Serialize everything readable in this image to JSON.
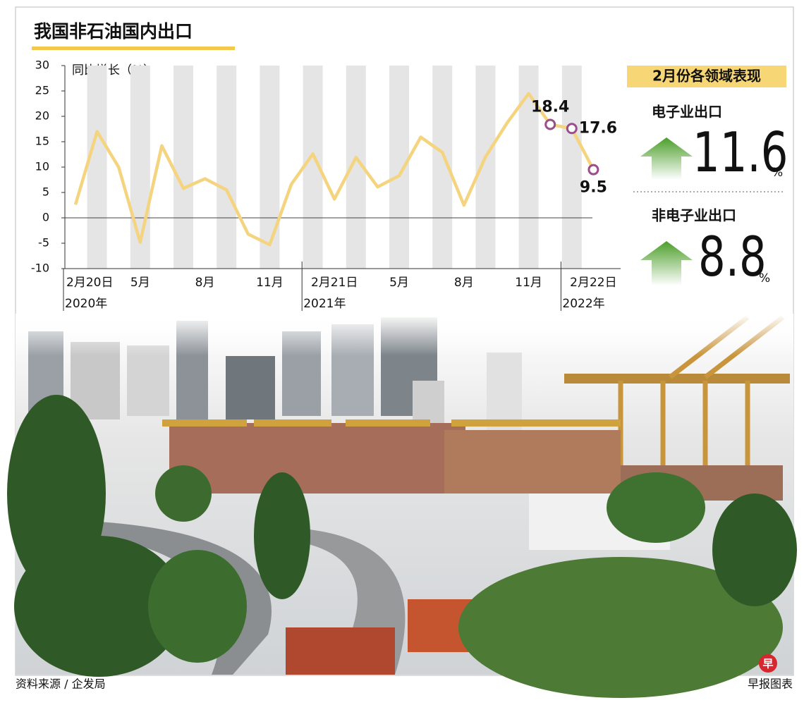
{
  "chart_data": {
    "type": "line",
    "title": "我国非石油国内出口",
    "y_label": "同比增长（%）",
    "categories": [
      "2月20日",
      null,
      null,
      "5月",
      null,
      null,
      "8月",
      null,
      null,
      "11月",
      null,
      null,
      "2月21日",
      null,
      null,
      "5月",
      null,
      null,
      "8月",
      null,
      null,
      "11月",
      null,
      null,
      "2月22日"
    ],
    "x_sublabels": [
      "2020年",
      null,
      null,
      null,
      null,
      null,
      null,
      null,
      null,
      null,
      null,
      null,
      "2021年",
      null,
      null,
      null,
      null,
      null,
      null,
      null,
      null,
      null,
      null,
      null,
      "2022年"
    ],
    "values": [
      2.6,
      17,
      10,
      -4.8,
      14.2,
      5.8,
      7.7,
      5.5,
      -3.2,
      -5.3,
      6.6,
      12.6,
      3.7,
      11.9,
      6.1,
      8.3,
      15.9,
      12.9,
      2.5,
      12,
      18.7,
      24.5,
      18.4,
      17.6,
      9.5
    ],
    "value_labels": [
      null,
      null,
      null,
      null,
      null,
      null,
      null,
      null,
      null,
      null,
      null,
      null,
      null,
      null,
      null,
      null,
      null,
      null,
      null,
      null,
      null,
      null,
      "18.4",
      "17.6",
      "9.5"
    ],
    "color": "#f4d47e",
    "marker_color": "#9c4d8e",
    "ylim": [
      -10,
      30
    ],
    "yticks": [
      -10,
      -5,
      0,
      5,
      10,
      15,
      20,
      25,
      30
    ]
  },
  "panel": {
    "title": "2月份各领域表现",
    "items": [
      {
        "label": "电子业出口",
        "value": 11.6,
        "unit": "%"
      },
      {
        "label": "非电子业出口",
        "value": 8.8,
        "unit": "%"
      }
    ]
  },
  "footer": {
    "source": "资料来源 / 企发局",
    "credit": "早报图表",
    "logo": "早"
  }
}
